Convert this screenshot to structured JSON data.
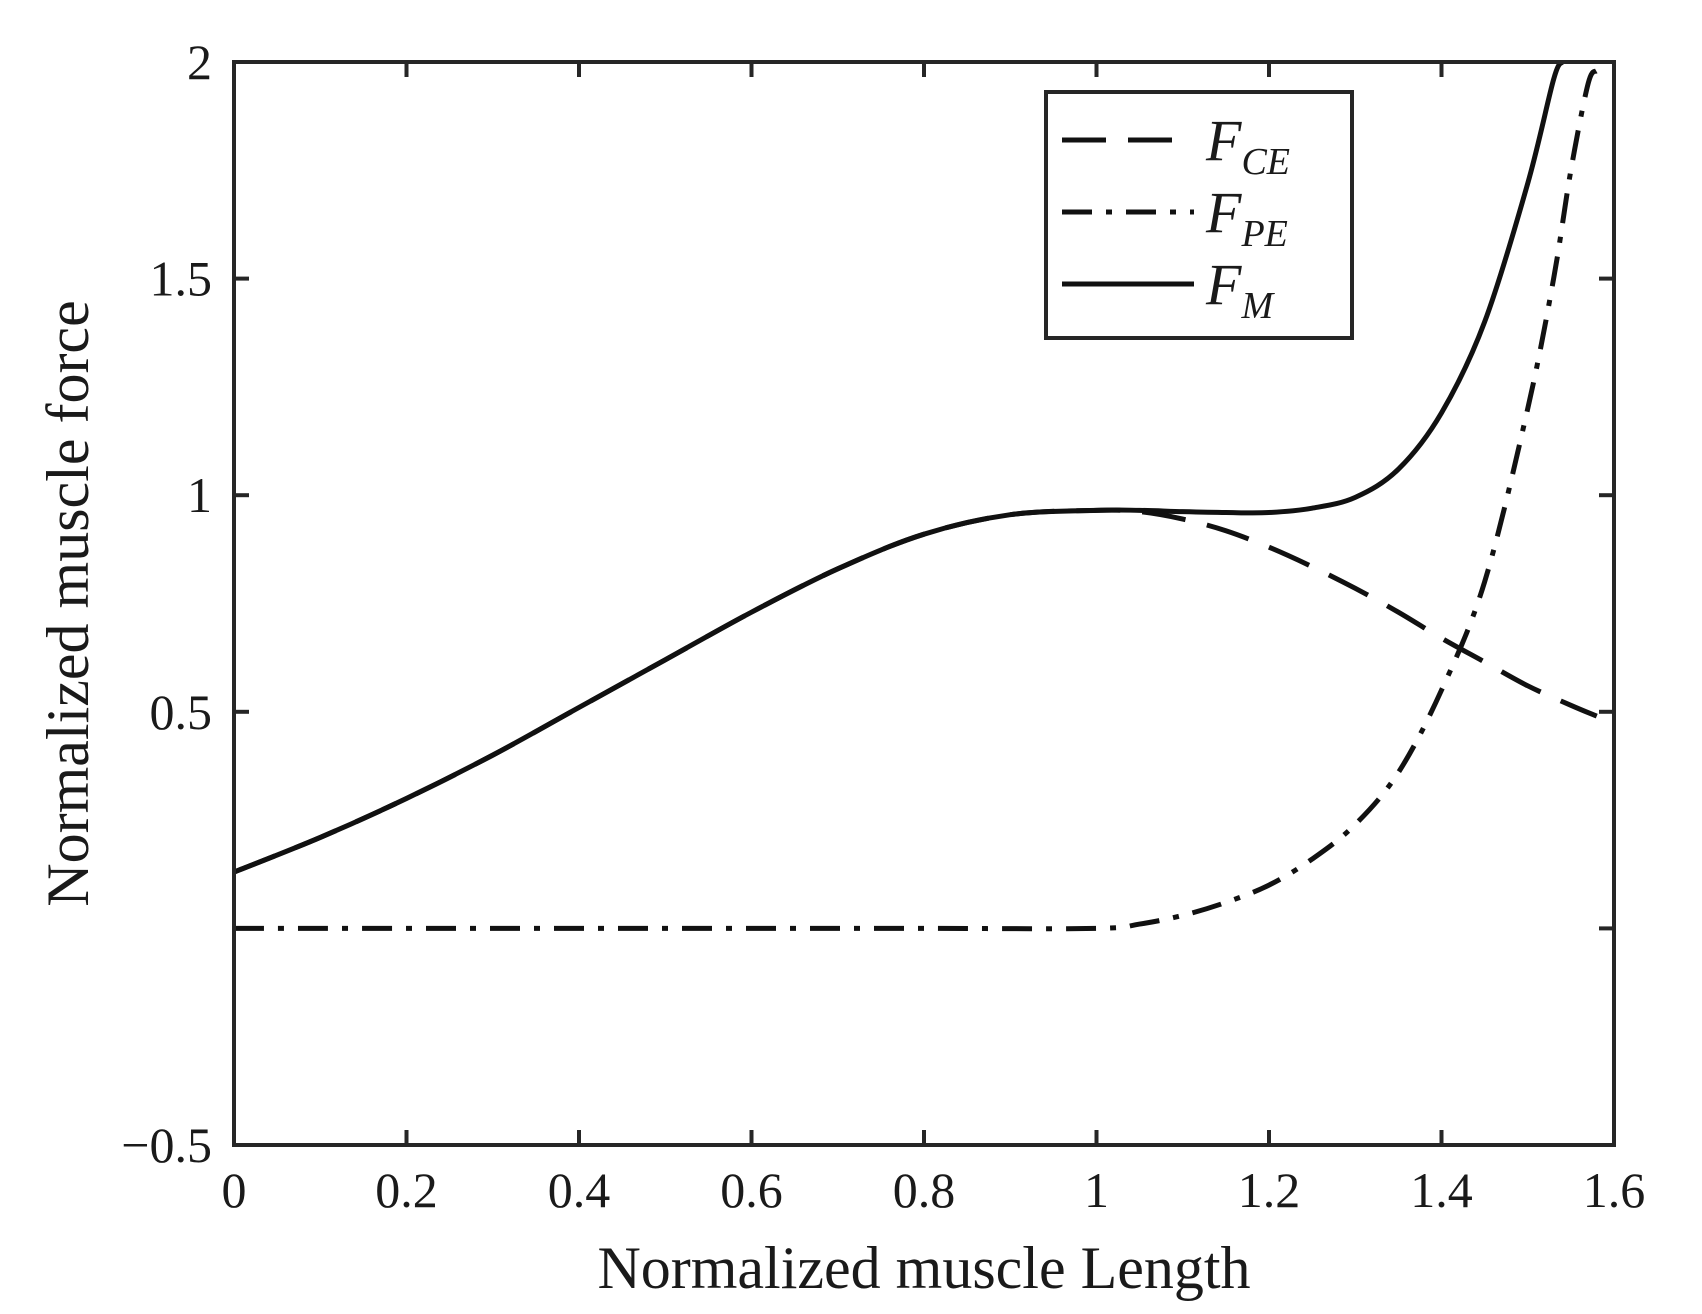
{
  "chart_data": {
    "type": "line",
    "xlabel": "Normalized muscle Length",
    "ylabel": "Normalized muscle force",
    "xlim": [
      0,
      1.6
    ],
    "ylim": [
      -0.5,
      2
    ],
    "xticks": [
      0,
      0.2,
      0.4,
      0.6,
      0.8,
      1,
      1.2,
      1.4,
      1.6
    ],
    "xtick_labels": [
      "0",
      "0.2",
      "0.4",
      "0.6",
      "0.8",
      "1",
      "1.2",
      "1.4",
      "1.6"
    ],
    "yticks": [
      -0.5,
      0.5,
      1,
      1.5,
      2
    ],
    "ytick_labels": [
      "−0.5",
      "0.5",
      "1",
      "1.5",
      "2"
    ],
    "grid": false,
    "legend_position": "top-right",
    "series": [
      {
        "name": "F_CE",
        "label_main": "F",
        "label_sub": "CE",
        "dash": "dashed",
        "x": [
          0,
          0.1,
          0.2,
          0.3,
          0.4,
          0.5,
          0.6,
          0.7,
          0.8,
          0.9,
          1.0,
          1.05,
          1.1,
          1.15,
          1.2,
          1.25,
          1.3,
          1.35,
          1.4,
          1.45,
          1.5,
          1.55,
          1.58
        ],
        "values": [
          0.13,
          0.21,
          0.3,
          0.4,
          0.51,
          0.62,
          0.73,
          0.83,
          0.91,
          0.955,
          0.965,
          0.962,
          0.945,
          0.918,
          0.88,
          0.835,
          0.785,
          0.73,
          0.67,
          0.615,
          0.56,
          0.515,
          0.49
        ]
      },
      {
        "name": "F_PE",
        "label_main": "F",
        "label_sub": "PE",
        "dash": "dash-dot",
        "x": [
          0,
          0.2,
          0.4,
          0.6,
          0.8,
          1.0,
          1.05,
          1.1,
          1.15,
          1.2,
          1.25,
          1.3,
          1.35,
          1.4,
          1.45,
          1.5,
          1.53,
          1.55,
          1.57,
          1.58
        ],
        "values": [
          0,
          0,
          0,
          0,
          0,
          0,
          0.01,
          0.03,
          0.06,
          0.1,
          0.16,
          0.24,
          0.36,
          0.55,
          0.8,
          1.2,
          1.5,
          1.75,
          1.95,
          1.98
        ]
      },
      {
        "name": "F_M",
        "label_main": "F",
        "label_sub": "M",
        "dash": "solid",
        "x": [
          0,
          0.1,
          0.2,
          0.3,
          0.4,
          0.5,
          0.6,
          0.7,
          0.8,
          0.9,
          1.0,
          1.05,
          1.1,
          1.15,
          1.2,
          1.25,
          1.3,
          1.35,
          1.4,
          1.45,
          1.5,
          1.53,
          1.54
        ],
        "values": [
          0.13,
          0.21,
          0.3,
          0.4,
          0.51,
          0.62,
          0.73,
          0.83,
          0.91,
          0.955,
          0.965,
          0.965,
          0.962,
          0.96,
          0.96,
          0.97,
          0.995,
          1.06,
          1.19,
          1.4,
          1.72,
          1.96,
          2.0
        ]
      }
    ]
  }
}
